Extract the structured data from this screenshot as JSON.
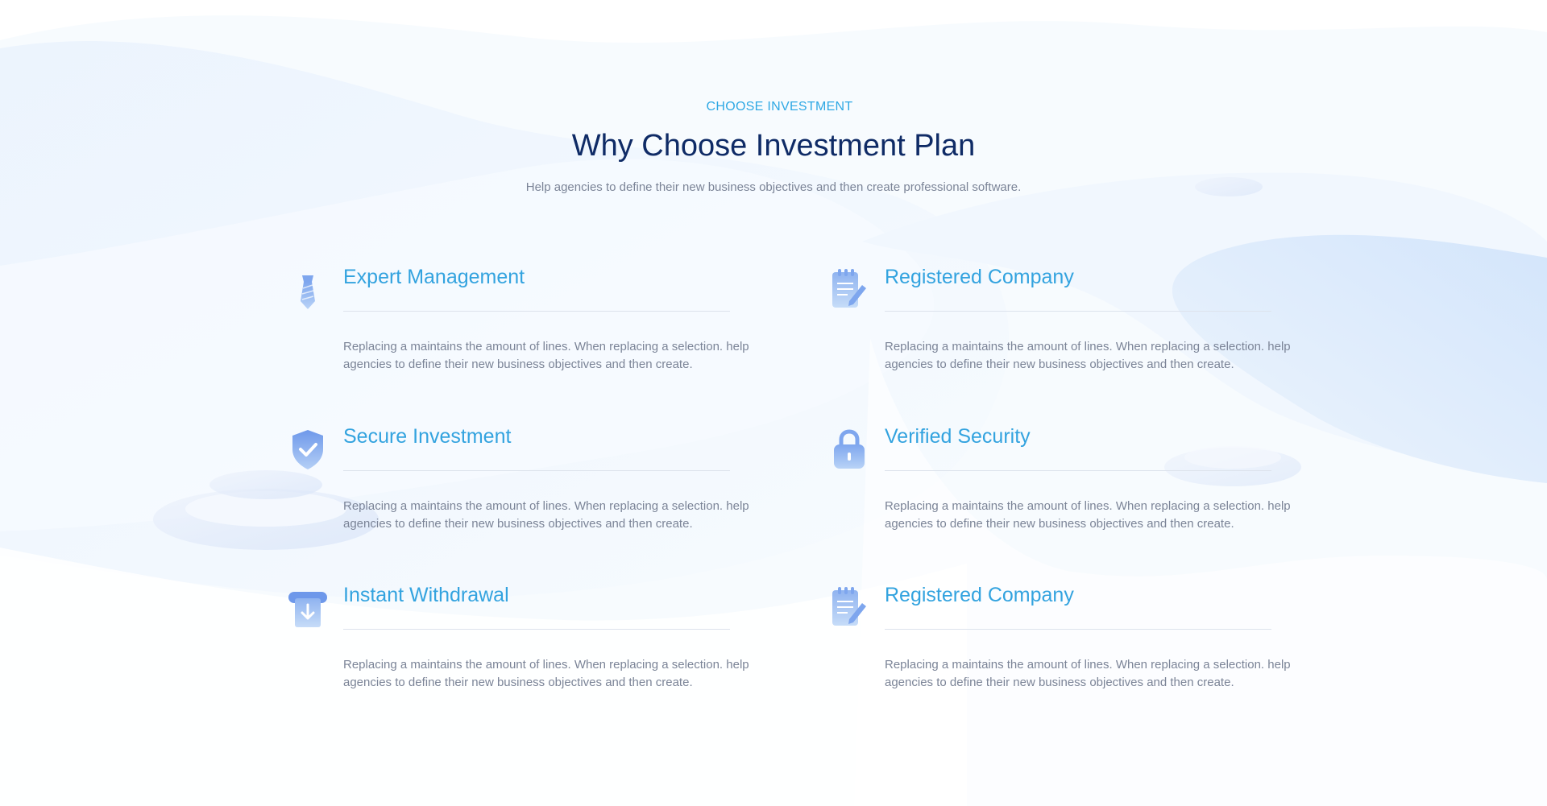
{
  "header": {
    "eyebrow": "CHOOSE INVESTMENT",
    "title": "Why Choose Investment Plan",
    "subtitle": "Help agencies to define their new business objectives and then create professional software."
  },
  "features": [
    {
      "title": "Expert Management",
      "description": "Replacing a maintains the amount of lines. When replacing a selection. help agencies to define their new business objectives and then create.",
      "icon": "tie-icon"
    },
    {
      "title": "Registered Company",
      "description": "Replacing a maintains the amount of lines. When replacing a selection. help agencies to define their new business objectives and then create.",
      "icon": "notepad-pen-icon"
    },
    {
      "title": "Secure Investment",
      "description": "Replacing a maintains the amount of lines. When replacing a selection. help agencies to define their new business objectives and then create.",
      "icon": "shield-check-icon"
    },
    {
      "title": "Verified Security",
      "description": "Replacing a maintains the amount of lines. When replacing a selection. help agencies to define their new business objectives and then create.",
      "icon": "padlock-icon"
    },
    {
      "title": "Instant Withdrawal",
      "description": "Replacing a maintains the amount of lines. When replacing a selection. help agencies to define their new business objectives and then create.",
      "icon": "withdraw-icon"
    },
    {
      "title": "Registered Company",
      "description": "Replacing a maintains the amount of lines. When replacing a selection. help agencies to define their new business objectives and then create.",
      "icon": "notepad-pen-icon"
    }
  ],
  "colors": {
    "accent": "#33a3df",
    "heading": "#0f2b66",
    "body_text": "#7b8497",
    "icon_light": "#b9d3f7",
    "icon_dark": "#7ea6ee"
  }
}
